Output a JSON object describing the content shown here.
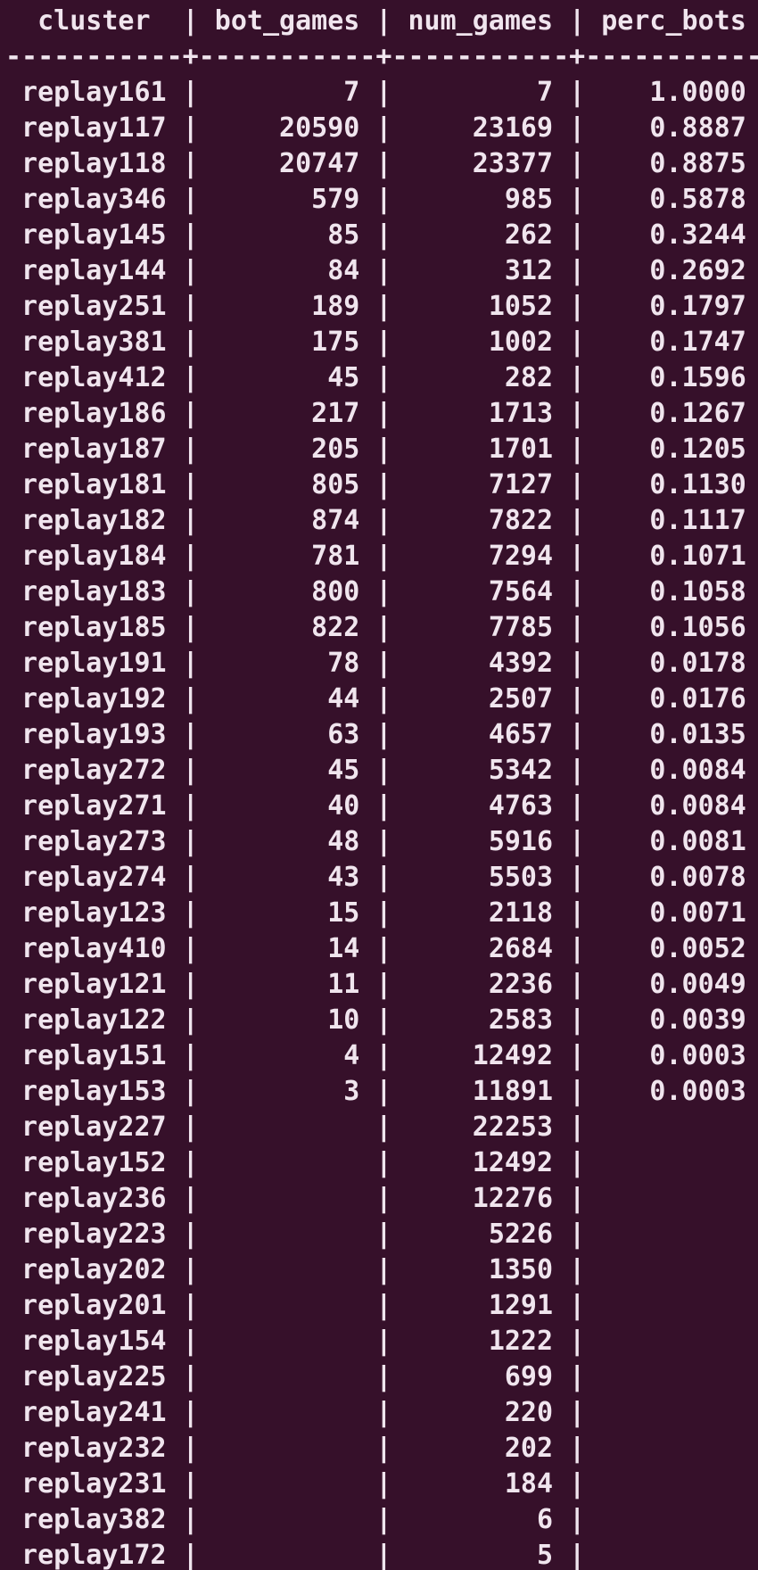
{
  "terminal": {
    "background_color": "#36102a",
    "text_color": "#f0e5ee"
  },
  "table": {
    "columns": [
      "cluster",
      "bot_games",
      "num_games",
      "perc_bots"
    ],
    "pipe": "|",
    "separator_line": "-----------+-----------+-----------+-----------",
    "rows": [
      {
        "cluster": "replay161",
        "bot_games": "7",
        "num_games": "7",
        "perc_bots": "1.0000"
      },
      {
        "cluster": "replay117",
        "bot_games": "20590",
        "num_games": "23169",
        "perc_bots": "0.8887"
      },
      {
        "cluster": "replay118",
        "bot_games": "20747",
        "num_games": "23377",
        "perc_bots": "0.8875"
      },
      {
        "cluster": "replay346",
        "bot_games": "579",
        "num_games": "985",
        "perc_bots": "0.5878"
      },
      {
        "cluster": "replay145",
        "bot_games": "85",
        "num_games": "262",
        "perc_bots": "0.3244"
      },
      {
        "cluster": "replay144",
        "bot_games": "84",
        "num_games": "312",
        "perc_bots": "0.2692"
      },
      {
        "cluster": "replay251",
        "bot_games": "189",
        "num_games": "1052",
        "perc_bots": "0.1797"
      },
      {
        "cluster": "replay381",
        "bot_games": "175",
        "num_games": "1002",
        "perc_bots": "0.1747"
      },
      {
        "cluster": "replay412",
        "bot_games": "45",
        "num_games": "282",
        "perc_bots": "0.1596"
      },
      {
        "cluster": "replay186",
        "bot_games": "217",
        "num_games": "1713",
        "perc_bots": "0.1267"
      },
      {
        "cluster": "replay187",
        "bot_games": "205",
        "num_games": "1701",
        "perc_bots": "0.1205"
      },
      {
        "cluster": "replay181",
        "bot_games": "805",
        "num_games": "7127",
        "perc_bots": "0.1130"
      },
      {
        "cluster": "replay182",
        "bot_games": "874",
        "num_games": "7822",
        "perc_bots": "0.1117"
      },
      {
        "cluster": "replay184",
        "bot_games": "781",
        "num_games": "7294",
        "perc_bots": "0.1071"
      },
      {
        "cluster": "replay183",
        "bot_games": "800",
        "num_games": "7564",
        "perc_bots": "0.1058"
      },
      {
        "cluster": "replay185",
        "bot_games": "822",
        "num_games": "7785",
        "perc_bots": "0.1056"
      },
      {
        "cluster": "replay191",
        "bot_games": "78",
        "num_games": "4392",
        "perc_bots": "0.0178"
      },
      {
        "cluster": "replay192",
        "bot_games": "44",
        "num_games": "2507",
        "perc_bots": "0.0176"
      },
      {
        "cluster": "replay193",
        "bot_games": "63",
        "num_games": "4657",
        "perc_bots": "0.0135"
      },
      {
        "cluster": "replay272",
        "bot_games": "45",
        "num_games": "5342",
        "perc_bots": "0.0084"
      },
      {
        "cluster": "replay271",
        "bot_games": "40",
        "num_games": "4763",
        "perc_bots": "0.0084"
      },
      {
        "cluster": "replay273",
        "bot_games": "48",
        "num_games": "5916",
        "perc_bots": "0.0081"
      },
      {
        "cluster": "replay274",
        "bot_games": "43",
        "num_games": "5503",
        "perc_bots": "0.0078"
      },
      {
        "cluster": "replay123",
        "bot_games": "15",
        "num_games": "2118",
        "perc_bots": "0.0071"
      },
      {
        "cluster": "replay410",
        "bot_games": "14",
        "num_games": "2684",
        "perc_bots": "0.0052"
      },
      {
        "cluster": "replay121",
        "bot_games": "11",
        "num_games": "2236",
        "perc_bots": "0.0049"
      },
      {
        "cluster": "replay122",
        "bot_games": "10",
        "num_games": "2583",
        "perc_bots": "0.0039"
      },
      {
        "cluster": "replay151",
        "bot_games": "4",
        "num_games": "12492",
        "perc_bots": "0.0003"
      },
      {
        "cluster": "replay153",
        "bot_games": "3",
        "num_games": "11891",
        "perc_bots": "0.0003"
      },
      {
        "cluster": "replay227",
        "bot_games": "",
        "num_games": "22253",
        "perc_bots": ""
      },
      {
        "cluster": "replay152",
        "bot_games": "",
        "num_games": "12492",
        "perc_bots": ""
      },
      {
        "cluster": "replay236",
        "bot_games": "",
        "num_games": "12276",
        "perc_bots": ""
      },
      {
        "cluster": "replay223",
        "bot_games": "",
        "num_games": "5226",
        "perc_bots": ""
      },
      {
        "cluster": "replay202",
        "bot_games": "",
        "num_games": "1350",
        "perc_bots": ""
      },
      {
        "cluster": "replay201",
        "bot_games": "",
        "num_games": "1291",
        "perc_bots": ""
      },
      {
        "cluster": "replay154",
        "bot_games": "",
        "num_games": "1222",
        "perc_bots": ""
      },
      {
        "cluster": "replay225",
        "bot_games": "",
        "num_games": "699",
        "perc_bots": ""
      },
      {
        "cluster": "replay241",
        "bot_games": "",
        "num_games": "220",
        "perc_bots": ""
      },
      {
        "cluster": "replay232",
        "bot_games": "",
        "num_games": "202",
        "perc_bots": ""
      },
      {
        "cluster": "replay231",
        "bot_games": "",
        "num_games": "184",
        "perc_bots": ""
      },
      {
        "cluster": "replay382",
        "bot_games": "",
        "num_games": "6",
        "perc_bots": ""
      },
      {
        "cluster": "replay172",
        "bot_games": "",
        "num_games": "5",
        "perc_bots": ""
      }
    ]
  }
}
